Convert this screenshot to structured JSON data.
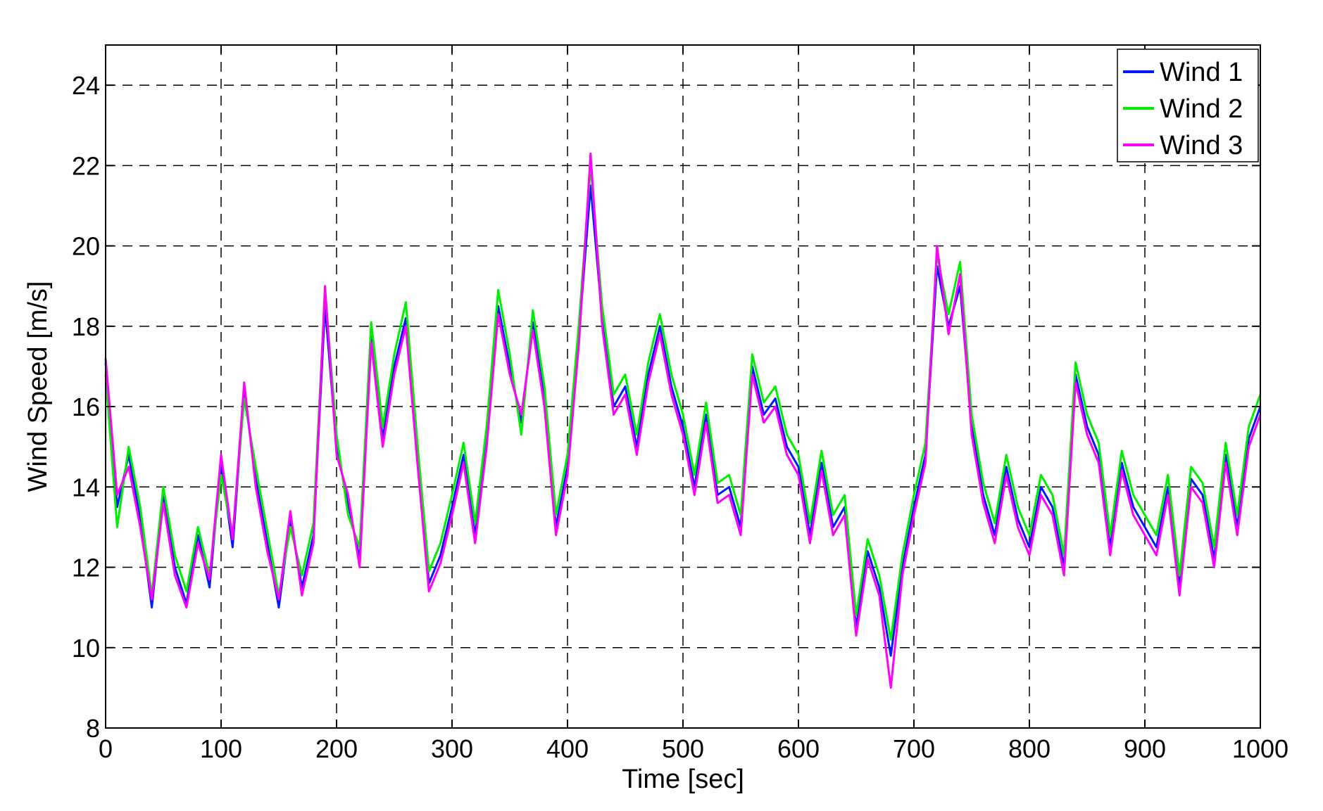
{
  "chart_data": {
    "type": "line",
    "title": "",
    "xlabel": "Time [sec]",
    "ylabel": "Wind Speed [m/s]",
    "xlim": [
      0,
      1000
    ],
    "ylim": [
      8,
      25
    ],
    "xticks": [
      0,
      100,
      200,
      300,
      400,
      500,
      600,
      700,
      800,
      900,
      1000
    ],
    "yticks": [
      8,
      10,
      12,
      14,
      16,
      18,
      20,
      22,
      24
    ],
    "grid": true,
    "grid_style": "dashed",
    "legend_position": "top-right",
    "x": [
      0,
      10,
      20,
      30,
      40,
      50,
      60,
      70,
      80,
      90,
      100,
      110,
      120,
      130,
      140,
      150,
      160,
      170,
      180,
      190,
      200,
      210,
      220,
      230,
      240,
      250,
      260,
      270,
      280,
      290,
      300,
      310,
      320,
      330,
      340,
      350,
      360,
      370,
      380,
      390,
      400,
      410,
      420,
      430,
      440,
      450,
      460,
      470,
      480,
      490,
      500,
      510,
      520,
      530,
      540,
      550,
      560,
      570,
      580,
      590,
      600,
      610,
      620,
      630,
      640,
      650,
      660,
      670,
      680,
      690,
      700,
      710,
      720,
      730,
      740,
      750,
      760,
      770,
      780,
      790,
      800,
      810,
      820,
      830,
      840,
      850,
      860,
      870,
      880,
      890,
      900,
      910,
      920,
      930,
      940,
      950,
      960,
      970,
      980,
      990,
      1000
    ],
    "series": [
      {
        "name": "Wind 1",
        "color": "#0019ff",
        "values": [
          17.1,
          13.5,
          14.8,
          13.2,
          11.0,
          13.8,
          12.0,
          11.1,
          12.8,
          11.5,
          14.6,
          12.5,
          16.4,
          14.2,
          12.6,
          11.0,
          13.2,
          11.5,
          12.8,
          18.5,
          15.0,
          13.6,
          12.2,
          17.8,
          15.2,
          17.0,
          18.2,
          14.8,
          11.6,
          12.3,
          13.5,
          14.8,
          12.8,
          15.2,
          18.5,
          17.0,
          15.6,
          18.1,
          16.2,
          13.0,
          14.5,
          17.8,
          21.5,
          18.2,
          16.0,
          16.5,
          15.0,
          16.8,
          18.0,
          16.5,
          15.5,
          14.0,
          15.8,
          13.8,
          14.0,
          13.0,
          17.0,
          15.8,
          16.2,
          15.0,
          14.5,
          12.8,
          14.6,
          13.0,
          13.5,
          10.5,
          12.4,
          11.5,
          9.8,
          12.0,
          13.5,
          14.8,
          19.5,
          18.0,
          19.0,
          15.5,
          13.8,
          12.8,
          14.5,
          13.2,
          12.5,
          14.0,
          13.5,
          12.0,
          16.8,
          15.5,
          14.8,
          12.5,
          14.6,
          13.5,
          13.0,
          12.5,
          14.0,
          11.5,
          14.2,
          13.8,
          12.2,
          14.8,
          13.0,
          15.2,
          16.0
        ]
      },
      {
        "name": "Wind 2",
        "color": "#00ee00",
        "values": [
          16.8,
          13.0,
          15.0,
          13.5,
          11.3,
          14.0,
          12.3,
          11.4,
          13.0,
          11.8,
          14.3,
          12.8,
          16.2,
          14.5,
          12.9,
          11.3,
          13.0,
          11.8,
          13.1,
          18.9,
          15.3,
          13.3,
          12.5,
          18.1,
          15.5,
          17.3,
          18.6,
          15.1,
          11.9,
          12.6,
          13.8,
          15.1,
          13.1,
          15.5,
          18.9,
          17.3,
          15.3,
          18.4,
          16.5,
          13.3,
          14.8,
          18.1,
          22.0,
          18.5,
          16.3,
          16.8,
          15.3,
          17.1,
          18.3,
          16.8,
          15.8,
          14.3,
          16.1,
          14.1,
          14.3,
          13.3,
          17.3,
          16.1,
          16.5,
          15.3,
          14.8,
          13.1,
          14.9,
          13.3,
          13.8,
          10.8,
          12.7,
          11.8,
          10.2,
          12.3,
          13.8,
          15.1,
          19.8,
          18.3,
          19.6,
          15.8,
          14.1,
          13.1,
          14.8,
          13.5,
          12.8,
          14.3,
          13.8,
          12.3,
          17.1,
          15.8,
          15.1,
          12.8,
          14.9,
          13.8,
          13.3,
          12.8,
          14.3,
          11.8,
          14.5,
          14.1,
          12.5,
          15.1,
          13.3,
          15.5,
          16.3
        ]
      },
      {
        "name": "Wind 3",
        "color": "#ff00ff",
        "values": [
          17.2,
          13.8,
          14.5,
          13.0,
          11.2,
          13.6,
          11.8,
          11.0,
          12.6,
          11.7,
          14.8,
          12.7,
          16.6,
          14.0,
          12.4,
          11.2,
          13.4,
          11.3,
          12.6,
          19.0,
          14.8,
          13.8,
          12.0,
          17.6,
          15.0,
          16.8,
          18.0,
          14.6,
          11.4,
          12.1,
          13.3,
          14.6,
          12.6,
          15.0,
          18.3,
          16.8,
          15.8,
          17.9,
          16.0,
          12.8,
          14.3,
          17.6,
          22.3,
          18.0,
          15.8,
          16.3,
          14.8,
          16.6,
          17.8,
          16.3,
          15.3,
          13.8,
          15.6,
          13.6,
          13.8,
          12.8,
          16.8,
          15.6,
          16.0,
          14.8,
          14.3,
          12.6,
          14.4,
          12.8,
          13.3,
          10.3,
          12.2,
          11.3,
          9.0,
          11.8,
          13.3,
          14.6,
          20.0,
          17.8,
          19.3,
          15.3,
          13.6,
          12.6,
          14.3,
          13.0,
          12.3,
          13.8,
          13.3,
          11.8,
          16.6,
          15.3,
          14.6,
          12.3,
          14.4,
          13.3,
          12.8,
          12.3,
          13.8,
          11.3,
          14.0,
          13.6,
          12.0,
          14.6,
          12.8,
          15.0,
          15.8
        ]
      }
    ]
  }
}
